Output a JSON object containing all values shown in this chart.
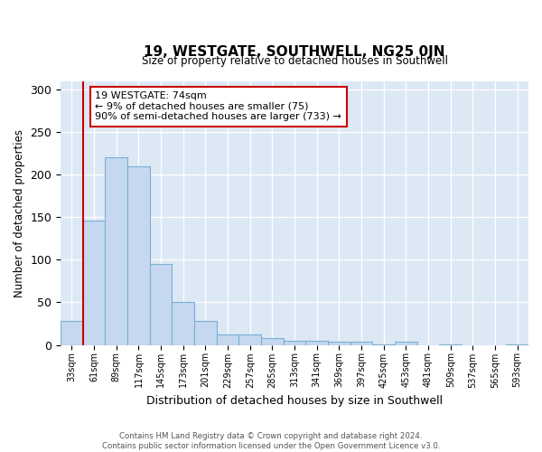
{
  "title": "19, WESTGATE, SOUTHWELL, NG25 0JN",
  "subtitle": "Size of property relative to detached houses in Southwell",
  "xlabel": "Distribution of detached houses by size in Southwell",
  "ylabel": "Number of detached properties",
  "bar_color": "#c5d8f0",
  "bar_edge_color": "#7aafd4",
  "background_color": "#dde8f5",
  "categories": [
    "33sqm",
    "61sqm",
    "89sqm",
    "117sqm",
    "145sqm",
    "173sqm",
    "201sqm",
    "229sqm",
    "257sqm",
    "285sqm",
    "313sqm",
    "341sqm",
    "369sqm",
    "397sqm",
    "425sqm",
    "453sqm",
    "481sqm",
    "509sqm",
    "537sqm",
    "565sqm",
    "593sqm"
  ],
  "values": [
    28,
    146,
    221,
    210,
    95,
    50,
    28,
    12,
    12,
    8,
    5,
    5,
    4,
    4,
    1,
    4,
    0,
    1,
    0,
    0,
    1
  ],
  "ylim": [
    0,
    310
  ],
  "yticks": [
    0,
    50,
    100,
    150,
    200,
    250,
    300
  ],
  "vline_color": "#cc0000",
  "annotation_text": "19 WESTGATE: 74sqm\n← 9% of detached houses are smaller (75)\n90% of semi-detached houses are larger (733) →",
  "annotation_box_color": "#ffffff",
  "annotation_box_edge": "#cc0000",
  "footer_line1": "Contains HM Land Registry data © Crown copyright and database right 2024.",
  "footer_line2": "Contains public sector information licensed under the Open Government Licence v3.0."
}
